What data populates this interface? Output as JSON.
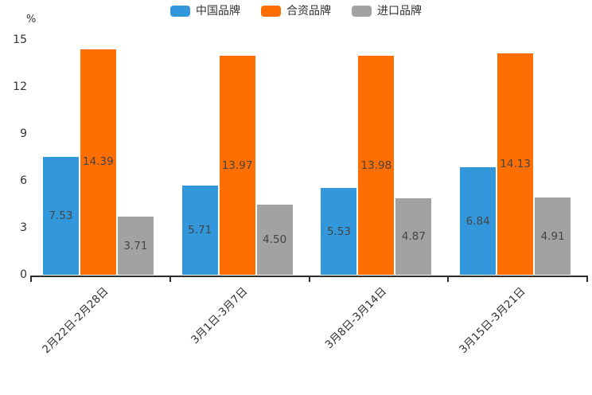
{
  "chart_data": {
    "type": "bar",
    "title": "",
    "unit_label": "%",
    "categories": [
      "2月22日-2月28日",
      "3月1日-3月7日",
      "3月8日-3月14日",
      "3月15日-3月21日"
    ],
    "series": [
      {
        "name": "中国品牌",
        "color": "#3398db",
        "values": [
          7.53,
          5.71,
          5.53,
          6.84
        ]
      },
      {
        "name": "合资品牌",
        "color": "#ff6e00",
        "values": [
          14.39,
          13.97,
          13.98,
          14.13
        ]
      },
      {
        "name": "进口品牌",
        "color": "#a2a2a2",
        "values": [
          3.71,
          4.5,
          4.87,
          4.91
        ]
      }
    ],
    "y_ticks": [
      0,
      3,
      6,
      9,
      12,
      15
    ],
    "ylim": [
      0,
      15
    ],
    "grid": false,
    "legend_position": "top",
    "value_label_position": "inside-center",
    "value_label_decimals": 2,
    "axis_color": "#2e2e2e",
    "text_color": "#333333",
    "value_label_color": "#444444",
    "background_color": "#ffffff"
  }
}
